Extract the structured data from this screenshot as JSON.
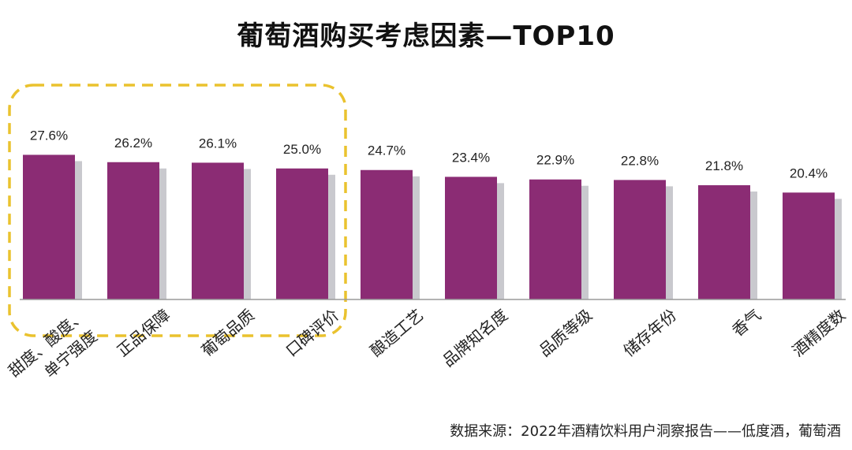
{
  "chart_data": {
    "type": "bar",
    "title": "葡萄酒购买考虑因素—TOP10",
    "categories": [
      "甜度、酸度、单宁强度",
      "正品保障",
      "葡萄品质",
      "口碑评价",
      "酿造工艺",
      "品牌知名度",
      "品质等级",
      "储存年份",
      "香气",
      "酒精度数"
    ],
    "values": [
      27.6,
      26.2,
      26.1,
      25.0,
      24.7,
      23.4,
      22.9,
      22.8,
      21.8,
      20.4
    ],
    "value_labels": [
      "27.6%",
      "26.2%",
      "26.1%",
      "25.0%",
      "24.7%",
      "23.4%",
      "22.9%",
      "22.8%",
      "21.8%",
      "20.4%"
    ],
    "xlabel": "",
    "ylabel": "",
    "grid": false,
    "legend": "none",
    "highlight_first_n": 4
  },
  "colors": {
    "bar": "#8B2C74",
    "bar_shadow": "#C9C9CE",
    "highlight_box": "#EAC22E",
    "axis": "#9A9A9A"
  },
  "source_note": "数据来源：2022年酒精饮料用户洞察报告——低度酒，葡萄酒"
}
